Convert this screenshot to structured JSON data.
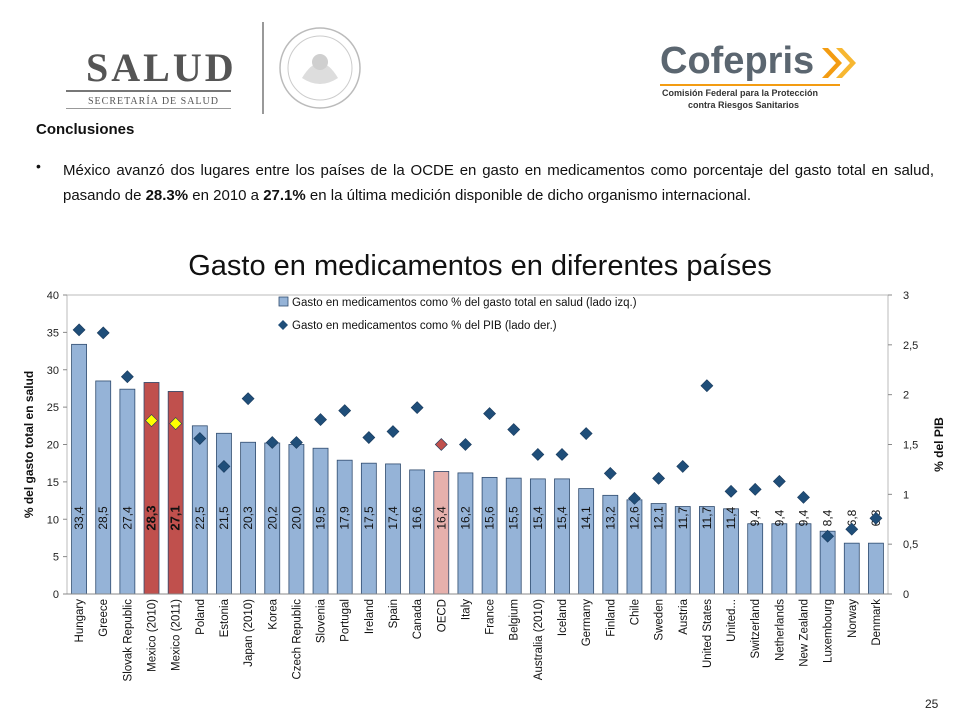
{
  "header": {
    "salud_logo_text": "SALUD",
    "salud_logo_sub": "SECRETARÍA DE SALUD",
    "cofepris_logo_text": "Cofepris",
    "cofepris_sub_line1": "Comisión Federal para la Protección",
    "cofepris_sub_line2": "contra Riesgos Sanitarios"
  },
  "section_title": "Conclusiones",
  "bullet": {
    "before_1": "México avanzó dos lugares entre los países de la OCDE en gasto en medicamentos como porcentaje del gasto total en salud, pasando de ",
    "bold_1": "28.3%",
    "middle": " en 2010 a ",
    "bold_2": "27.1%",
    "after": " en la última medición disponible de dicho organismo internacional."
  },
  "page_number": "25",
  "colors": {
    "bar": "#95b3d7",
    "bar_border": "#2f4b6e",
    "mexico_bar": "#c0504d",
    "oecd_bar": "#e6b0ac",
    "diamond": "#1f4e79",
    "mexico_diamond": "#ffff00",
    "oecd_diamond": "#c0504d"
  },
  "chart_data": {
    "type": "bar",
    "title": "Gasto en medicamentos en diferentes países",
    "ylabel": "% del gasto total en salud",
    "y2label": "% del PIB",
    "ylim": [
      0,
      40
    ],
    "y2lim": [
      0,
      3
    ],
    "yticks": [
      "0",
      "5",
      "10",
      "15",
      "20",
      "25",
      "30",
      "35",
      "40"
    ],
    "y2ticks": [
      "0",
      "0,5",
      "1",
      "1,5",
      "2",
      "2,5",
      "3"
    ],
    "legend_position": "top",
    "categories": [
      "Hungary",
      "Greece",
      "Slovak Republic",
      "Mexico (2010)",
      "Mexico (2011)",
      "Poland",
      "Estonia",
      "Japan (2010)",
      "Korea",
      "Czech Republic",
      "Slovenia",
      "Portugal",
      "Ireland",
      "Spain",
      "Canada",
      "OECD",
      "Italy",
      "France",
      "Belgium",
      "Australia (2010)",
      "Iceland",
      "Germany",
      "Finland",
      "Chile",
      "Sweden",
      "Austria",
      "United States",
      "United...",
      "Switzerland",
      "Netherlands",
      "New Zealand",
      "Luxembourg",
      "Norway",
      "Denmark"
    ],
    "series": [
      {
        "name": "Gasto en medicamentos como % del gasto total en salud (lado izq.)",
        "axis": "left",
        "kind": "bar",
        "values": [
          33.4,
          28.5,
          27.4,
          28.3,
          27.1,
          22.5,
          21.5,
          20.3,
          20.2,
          20.0,
          19.5,
          17.9,
          17.5,
          17.4,
          16.6,
          16.4,
          16.2,
          15.6,
          15.5,
          15.4,
          15.4,
          14.1,
          13.2,
          12.6,
          12.1,
          11.7,
          11.7,
          11.4,
          9.4,
          9.4,
          9.4,
          8.4,
          6.8,
          6.8
        ],
        "labels": [
          "33,4",
          "28,5",
          "27,4",
          "28,3",
          "27,1",
          "22,5",
          "21,5",
          "20,3",
          "20,2",
          "20,0",
          "19,5",
          "17,9",
          "17,5",
          "17,4",
          "16,6",
          "16,4",
          "16,2",
          "15,6",
          "15,5",
          "15,4",
          "15,4",
          "14,1",
          "13,2",
          "12,6",
          "12,1",
          "11,7",
          "11,7",
          "11,4",
          "9,4",
          "9,4",
          "9,4",
          "8,4",
          "6,8",
          "6,8"
        ]
      },
      {
        "name": "Gasto en medicamentos como % del PIB (lado der.)",
        "axis": "right",
        "kind": "scatter",
        "values": [
          2.65,
          2.62,
          2.18,
          1.74,
          1.71,
          1.56,
          1.28,
          1.96,
          1.52,
          1.52,
          1.75,
          1.84,
          1.57,
          1.63,
          1.87,
          1.5,
          1.5,
          1.81,
          1.65,
          1.4,
          1.4,
          1.61,
          1.21,
          0.96,
          1.16,
          1.28,
          2.09,
          1.03,
          1.05,
          1.13,
          0.97,
          0.58,
          0.65,
          0.76
        ]
      }
    ]
  }
}
